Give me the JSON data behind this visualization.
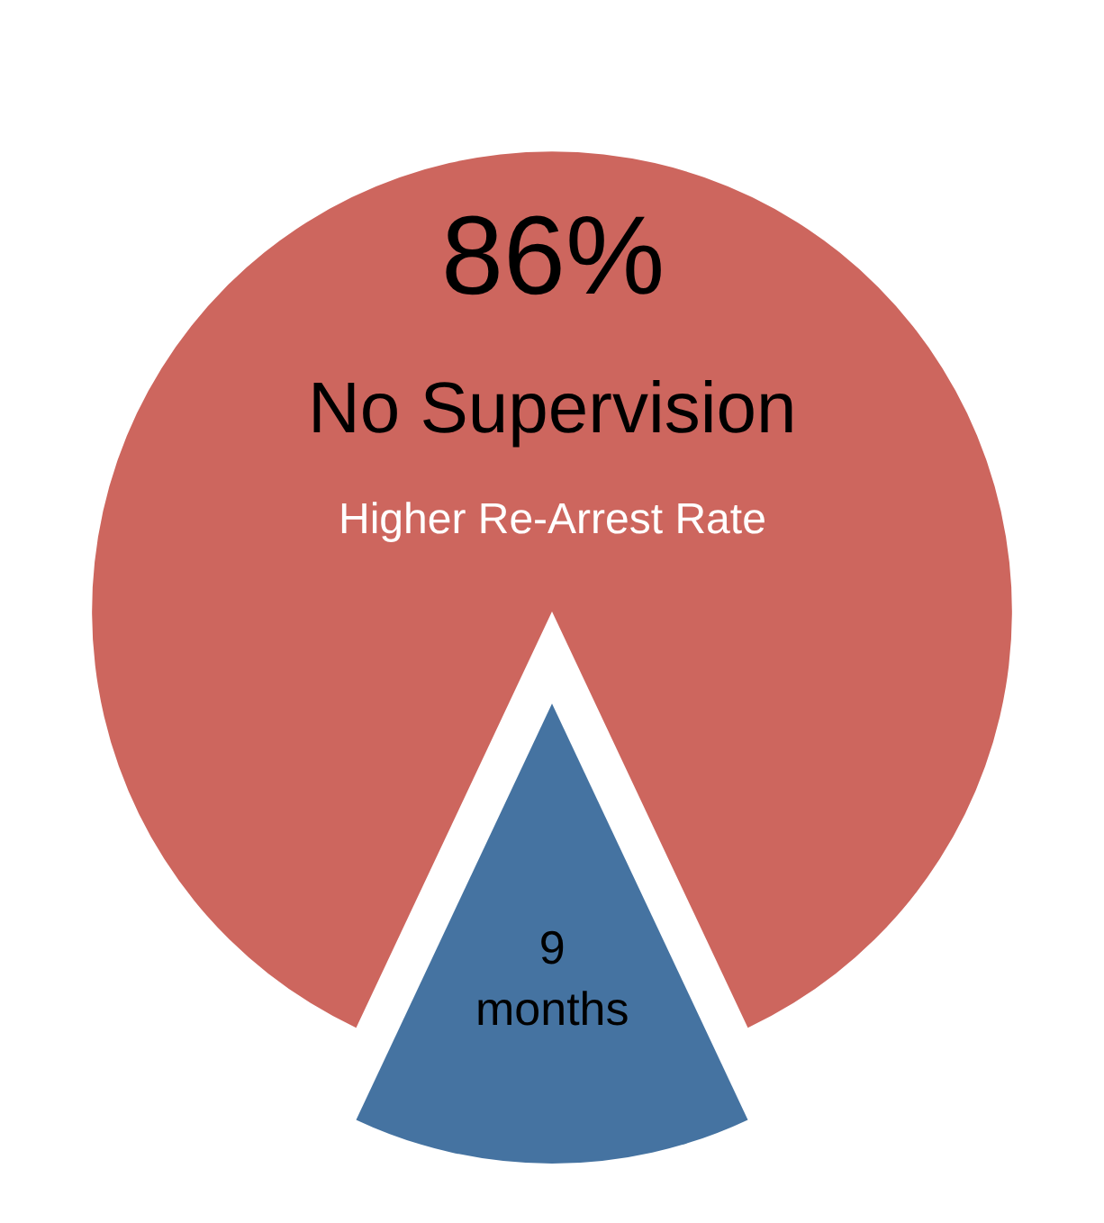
{
  "chart_data": {
    "type": "pie",
    "categories": [
      "No Supervision",
      "9 months"
    ],
    "values": [
      86,
      14
    ],
    "colors": [
      "#cd665e",
      "#4573a1"
    ],
    "value_labels": [
      "86%",
      null
    ],
    "annotations": [
      "Higher Re-Arrest Rate"
    ],
    "legend": false
  }
}
